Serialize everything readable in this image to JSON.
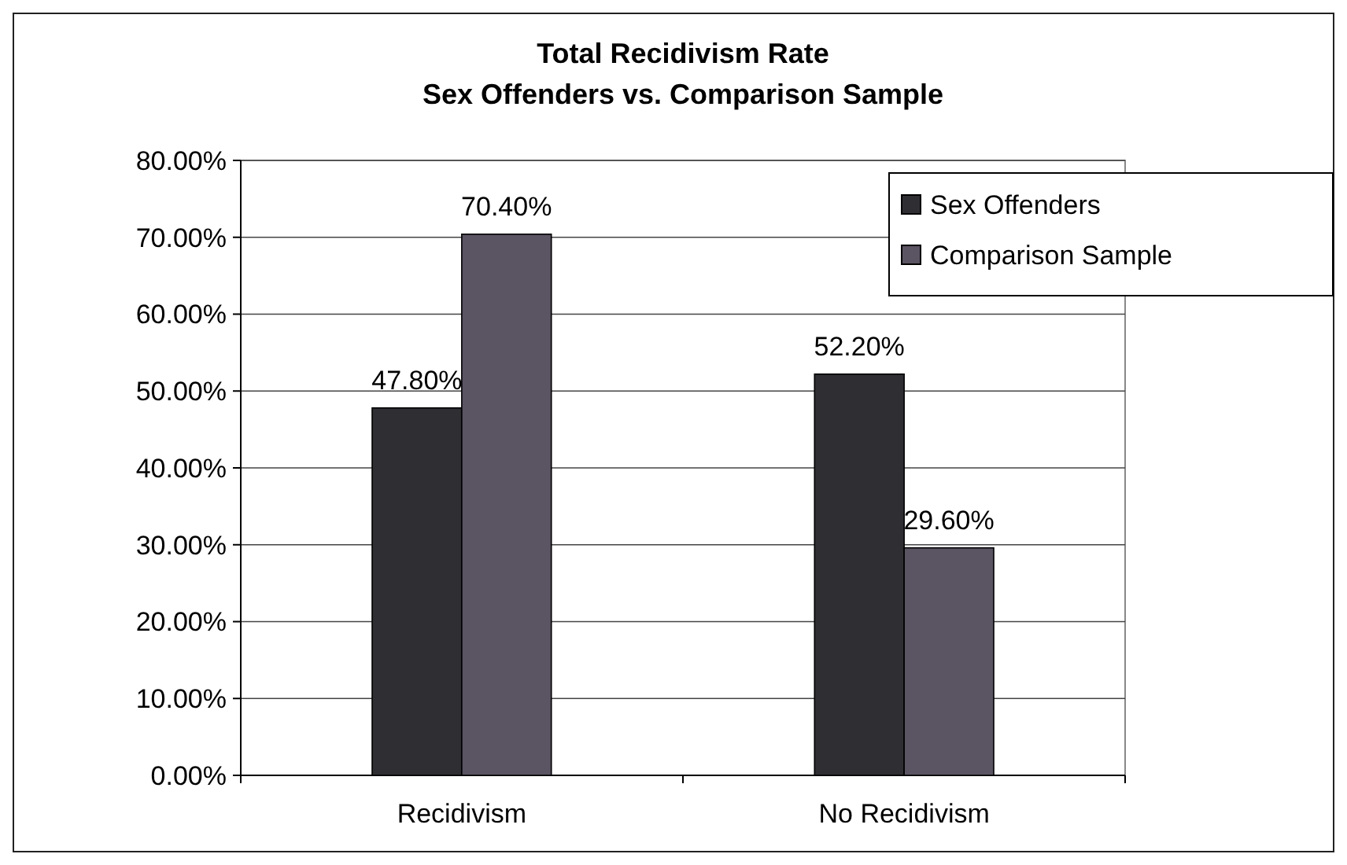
{
  "chart_data": {
    "type": "bar",
    "title": "Total Recidivism Rate",
    "subtitle": "Sex Offenders vs. Comparison Sample",
    "categories": [
      "Recidivism",
      "No Recidivism"
    ],
    "series": [
      {
        "name": "Sex Offenders",
        "color": "#2f2f33",
        "values": [
          47.8,
          52.2
        ],
        "value_labels": [
          "47.80%",
          "52.20%"
        ]
      },
      {
        "name": "Comparison Sample",
        "color": "#5b5463",
        "values": [
          70.4,
          29.6
        ],
        "value_labels": [
          "70.40%",
          "29.60%"
        ]
      }
    ],
    "ylim": [
      0,
      80
    ],
    "yticks": [
      {
        "value": 0,
        "label": "0.00%"
      },
      {
        "value": 10,
        "label": "10.00%"
      },
      {
        "value": 20,
        "label": "20.00%"
      },
      {
        "value": 30,
        "label": "30.00%"
      },
      {
        "value": 40,
        "label": "40.00%"
      },
      {
        "value": 50,
        "label": "50.00%"
      },
      {
        "value": 60,
        "label": "60.00%"
      },
      {
        "value": 70,
        "label": "70.00%"
      },
      {
        "value": 80,
        "label": "80.00%"
      }
    ],
    "grid": "y",
    "legend": "top right"
  }
}
